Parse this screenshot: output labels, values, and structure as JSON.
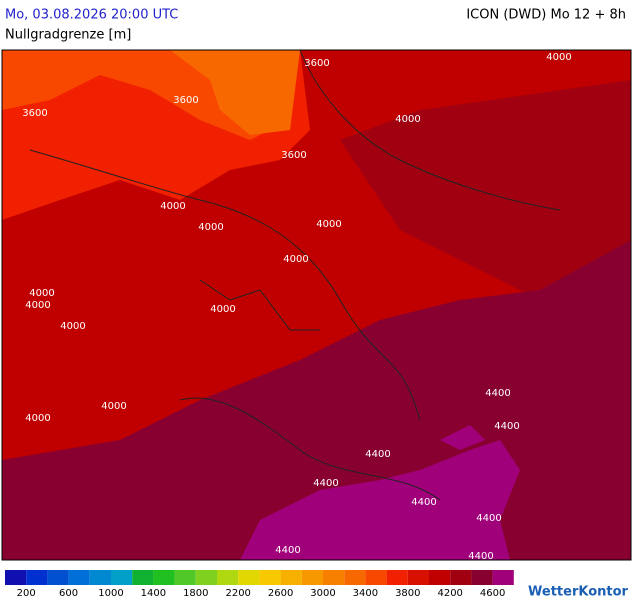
{
  "header": {
    "datetime": "Mo, 03.08.2026 20:00 UTC",
    "model": "ICON (DWD) Mo 12 + 8h",
    "parameter": "Nullgradgrenze [m]"
  },
  "map": {
    "contour_labels": [
      "3600",
      "3600",
      "3600",
      "3600",
      "4000",
      "4000",
      "4000",
      "4000",
      "4000",
      "4000",
      "4000",
      "4000",
      "4000",
      "4000",
      "4000",
      "4000",
      "4400",
      "4400",
      "4400",
      "4400",
      "4400",
      "4400",
      "4400",
      "4400"
    ]
  },
  "legend": {
    "labels": [
      "200",
      "600",
      "1000",
      "1400",
      "1800",
      "2200",
      "2600",
      "3000",
      "3400",
      "3800",
      "4200",
      "4600"
    ],
    "colors": [
      "#1010b0",
      "#0030d0",
      "#0050d0",
      "#0070d8",
      "#0088d0",
      "#00a0c8",
      "#10b030",
      "#20c020",
      "#50c828",
      "#80d020",
      "#b0d810",
      "#e0d800",
      "#f8c800",
      "#f8b000",
      "#f89800",
      "#f88000",
      "#f86800",
      "#f84800",
      "#f02000",
      "#d81000",
      "#c00000",
      "#a00010",
      "#880030",
      "#a0007a"
    ]
  },
  "logo": "WetterKontor"
}
